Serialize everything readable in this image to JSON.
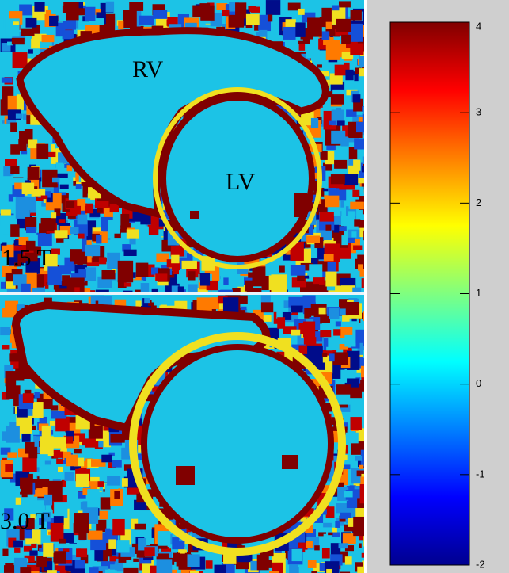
{
  "panels": [
    {
      "field_strength": "1.5 T",
      "labels": [
        "RV",
        "LV"
      ]
    },
    {
      "field_strength": "3.0 T"
    }
  ],
  "colorbar": {
    "lim": [
      -2,
      4
    ],
    "ticks": [
      -2,
      -1,
      0,
      1,
      2,
      3,
      4
    ],
    "colormap": "jet"
  }
}
